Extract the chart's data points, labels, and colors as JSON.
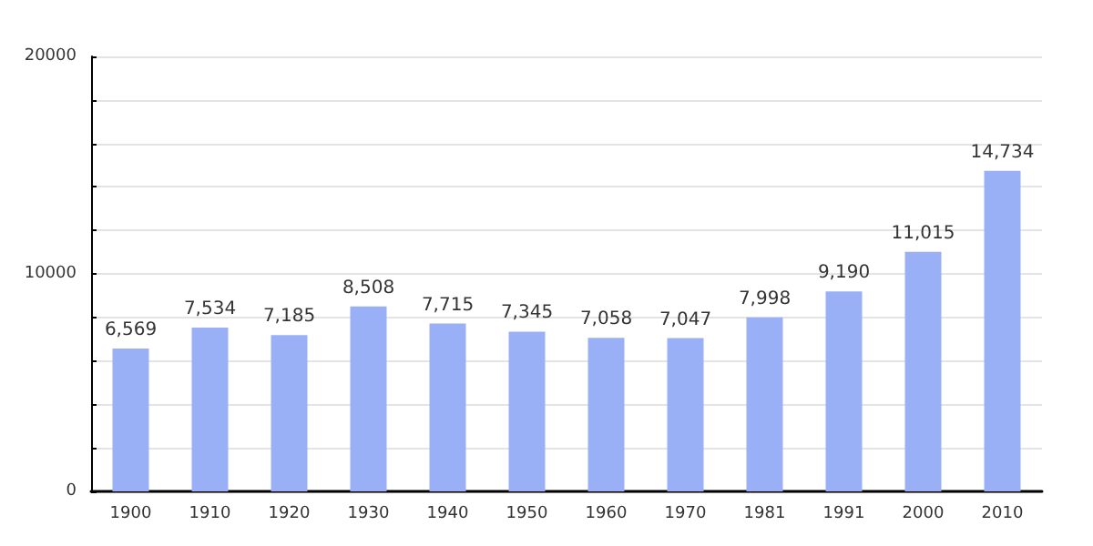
{
  "chart_data": {
    "type": "bar",
    "categories": [
      "1900",
      "1910",
      "1920",
      "1930",
      "1940",
      "1950",
      "1960",
      "1970",
      "1981",
      "1991",
      "2000",
      "2010"
    ],
    "values": [
      6569,
      7534,
      7185,
      8508,
      7715,
      7345,
      7058,
      7047,
      7998,
      9190,
      11015,
      14734
    ],
    "value_labels": [
      "6,569",
      "7,534",
      "7,185",
      "8,508",
      "7,715",
      "7,345",
      "7,058",
      "7,047",
      "7,998",
      "9,190",
      "11,015",
      "14,734"
    ],
    "color": "#99b0f7",
    "ylim": [
      0,
      20000
    ],
    "yticks": [
      0,
      {
        "value": 2000,
        "label": null
      },
      {
        "value": 4000,
        "label": null
      },
      {
        "value": 6000,
        "label": null
      },
      {
        "value": 8000,
        "label": null
      },
      10000,
      {
        "value": 12000,
        "label": null
      },
      {
        "value": 14000,
        "label": null
      },
      {
        "value": 16000,
        "label": null
      },
      {
        "value": 18000,
        "label": null
      },
      20000
    ],
    "grid": true
  }
}
